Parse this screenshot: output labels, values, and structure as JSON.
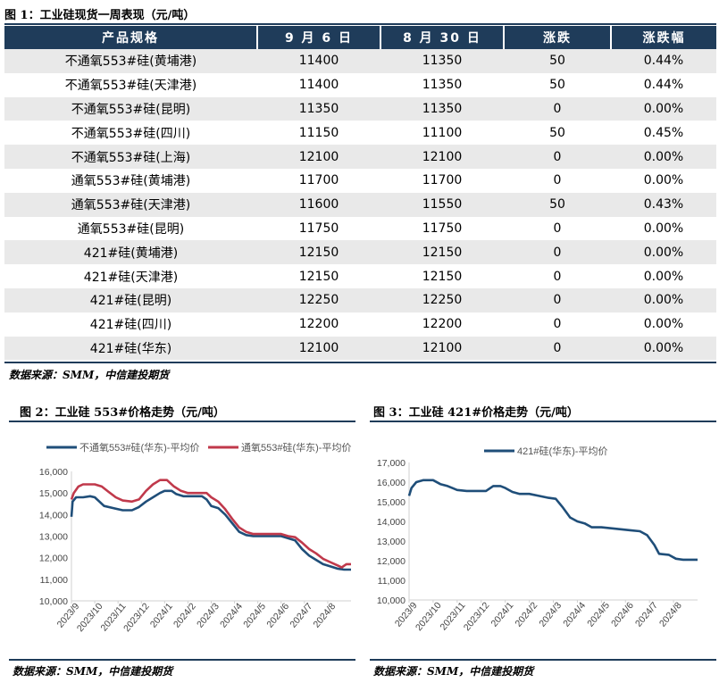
{
  "figure1": {
    "title": "图 1：工业硅现货一周表现（元/吨）",
    "headers": [
      "产品规格",
      "9 月 6 日",
      "8 月 30 日",
      "涨跌",
      "涨跌幅"
    ],
    "rows": [
      [
        "不通氧553#硅(黄埔港)",
        "11400",
        "11350",
        "50",
        "0.44%"
      ],
      [
        "不通氧553#硅(天津港)",
        "11400",
        "11350",
        "50",
        "0.44%"
      ],
      [
        "不通氧553#硅(昆明)",
        "11350",
        "11350",
        "0",
        "0.00%"
      ],
      [
        "不通氧553#硅(四川)",
        "11150",
        "11100",
        "50",
        "0.45%"
      ],
      [
        "不通氧553#硅(上海)",
        "12100",
        "12100",
        "0",
        "0.00%"
      ],
      [
        "通氧553#硅(黄埔港)",
        "11700",
        "11700",
        "0",
        "0.00%"
      ],
      [
        "通氧553#硅(天津港)",
        "11600",
        "11550",
        "50",
        "0.43%"
      ],
      [
        "通氧553#硅(昆明)",
        "11750",
        "11750",
        "0",
        "0.00%"
      ],
      [
        "421#硅(黄埔港)",
        "12150",
        "12150",
        "0",
        "0.00%"
      ],
      [
        "421#硅(天津港)",
        "12150",
        "12150",
        "0",
        "0.00%"
      ],
      [
        "421#硅(昆明)",
        "12250",
        "12250",
        "0",
        "0.00%"
      ],
      [
        "421#硅(四川)",
        "12200",
        "12200",
        "0",
        "0.00%"
      ],
      [
        "421#硅(华东)",
        "12100",
        "12100",
        "0",
        "0.00%"
      ]
    ],
    "source": "数据来源：SMM，中信建投期货"
  },
  "figure2": {
    "title": "图 2：工业硅 553#价格走势（元/吨）",
    "source": "数据来源：SMM，中信建投期货"
  },
  "figure3": {
    "title": "图 3：工业硅 421#价格走势（元/吨）",
    "source": "数据来源：SMM，中信建投期货"
  },
  "colors": {
    "navy": "#1f4e79",
    "red": "#c0394b",
    "header": "#1f3c5a"
  },
  "chart_data": [
    {
      "type": "line",
      "title": "",
      "x_ticks": [
        "2023/9",
        "2023/10",
        "2023/11",
        "2023/12",
        "2024/1",
        "2024/2",
        "2024/3",
        "2024/4",
        "2024/5",
        "2024/6",
        "2024/7",
        "2024/8"
      ],
      "ylim": [
        10000,
        16000
      ],
      "y_ticks": [
        "10,000",
        "11,000",
        "12,000",
        "13,000",
        "14,000",
        "15,000",
        "16,000"
      ],
      "legend_position": "top",
      "series": [
        {
          "name": "不通氧553#硅(华东)-平均价",
          "color": "#1f4e79",
          "points": [
            [
              0.0,
              13900
            ],
            [
              0.05,
              14600
            ],
            [
              0.2,
              14800
            ],
            [
              0.5,
              14800
            ],
            [
              0.8,
              14850
            ],
            [
              1.0,
              14800
            ],
            [
              1.2,
              14600
            ],
            [
              1.4,
              14400
            ],
            [
              1.8,
              14300
            ],
            [
              2.2,
              14200
            ],
            [
              2.6,
              14200
            ],
            [
              2.9,
              14350
            ],
            [
              3.2,
              14600
            ],
            [
              3.5,
              14800
            ],
            [
              3.8,
              15000
            ],
            [
              4.0,
              15100
            ],
            [
              4.3,
              15100
            ],
            [
              4.5,
              14950
            ],
            [
              4.8,
              14850
            ],
            [
              5.2,
              14850
            ],
            [
              5.6,
              14850
            ],
            [
              5.8,
              14700
            ],
            [
              6.0,
              14400
            ],
            [
              6.3,
              14300
            ],
            [
              6.6,
              14000
            ],
            [
              6.9,
              13600
            ],
            [
              7.2,
              13200
            ],
            [
              7.5,
              13050
            ],
            [
              7.8,
              13000
            ],
            [
              8.2,
              13000
            ],
            [
              8.6,
              13000
            ],
            [
              9.0,
              13000
            ],
            [
              9.3,
              12900
            ],
            [
              9.6,
              12800
            ],
            [
              9.9,
              12400
            ],
            [
              10.2,
              12100
            ],
            [
              10.5,
              11900
            ],
            [
              10.8,
              11700
            ],
            [
              11.1,
              11600
            ],
            [
              11.4,
              11500
            ],
            [
              11.7,
              11450
            ],
            [
              11.9,
              11450
            ],
            [
              12.0,
              11450
            ]
          ]
        },
        {
          "name": "通氧553#硅(华东)-平均价",
          "color": "#c0394b",
          "points": [
            [
              0.0,
              14700
            ],
            [
              0.1,
              15000
            ],
            [
              0.3,
              15300
            ],
            [
              0.5,
              15400
            ],
            [
              1.0,
              15400
            ],
            [
              1.3,
              15300
            ],
            [
              1.6,
              15050
            ],
            [
              1.9,
              14800
            ],
            [
              2.2,
              14650
            ],
            [
              2.6,
              14600
            ],
            [
              2.9,
              14700
            ],
            [
              3.2,
              15100
            ],
            [
              3.5,
              15400
            ],
            [
              3.8,
              15600
            ],
            [
              4.1,
              15600
            ],
            [
              4.4,
              15300
            ],
            [
              4.7,
              15100
            ],
            [
              5.0,
              15000
            ],
            [
              5.4,
              15000
            ],
            [
              5.8,
              15000
            ],
            [
              6.0,
              14800
            ],
            [
              6.3,
              14600
            ],
            [
              6.6,
              14250
            ],
            [
              6.9,
              13800
            ],
            [
              7.2,
              13400
            ],
            [
              7.5,
              13200
            ],
            [
              7.8,
              13100
            ],
            [
              8.2,
              13100
            ],
            [
              8.6,
              13100
            ],
            [
              9.0,
              13100
            ],
            [
              9.3,
              13000
            ],
            [
              9.6,
              12950
            ],
            [
              9.9,
              12700
            ],
            [
              10.2,
              12400
            ],
            [
              10.5,
              12200
            ],
            [
              10.8,
              11950
            ],
            [
              11.1,
              11800
            ],
            [
              11.4,
              11650
            ],
            [
              11.6,
              11550
            ],
            [
              11.8,
              11700
            ],
            [
              12.0,
              11700
            ]
          ]
        }
      ]
    },
    {
      "type": "line",
      "title": "",
      "x_ticks": [
        "2023/9",
        "2023/10",
        "2023/11",
        "2023/12",
        "2024/1",
        "2024/2",
        "2024/3",
        "2024/4",
        "2024/5",
        "2024/6",
        "2024/7",
        "2024/8"
      ],
      "ylim": [
        10000,
        17000
      ],
      "y_ticks": [
        "10,000",
        "11,000",
        "12,000",
        "13,000",
        "14,000",
        "15,000",
        "16,000",
        "17,000"
      ],
      "legend_position": "top",
      "series": [
        {
          "name": "421#硅(华东)-平均价",
          "color": "#1f4e79",
          "points": [
            [
              0.0,
              15300
            ],
            [
              0.1,
              15700
            ],
            [
              0.3,
              16000
            ],
            [
              0.6,
              16100
            ],
            [
              1.0,
              16100
            ],
            [
              1.3,
              15900
            ],
            [
              1.6,
              15800
            ],
            [
              2.0,
              15600
            ],
            [
              2.4,
              15550
            ],
            [
              2.8,
              15550
            ],
            [
              3.2,
              15550
            ],
            [
              3.5,
              15800
            ],
            [
              3.8,
              15800
            ],
            [
              4.0,
              15700
            ],
            [
              4.3,
              15500
            ],
            [
              4.6,
              15400
            ],
            [
              5.0,
              15400
            ],
            [
              5.4,
              15300
            ],
            [
              5.8,
              15200
            ],
            [
              6.1,
              15150
            ],
            [
              6.4,
              14700
            ],
            [
              6.7,
              14200
            ],
            [
              7.0,
              14000
            ],
            [
              7.3,
              13900
            ],
            [
              7.6,
              13700
            ],
            [
              8.0,
              13700
            ],
            [
              8.4,
              13650
            ],
            [
              8.8,
              13600
            ],
            [
              9.2,
              13550
            ],
            [
              9.6,
              13500
            ],
            [
              9.9,
              13300
            ],
            [
              10.2,
              12800
            ],
            [
              10.4,
              12350
            ],
            [
              10.8,
              12300
            ],
            [
              11.1,
              12100
            ],
            [
              11.4,
              12050
            ],
            [
              11.7,
              12050
            ],
            [
              12.0,
              12050
            ]
          ]
        }
      ]
    }
  ]
}
